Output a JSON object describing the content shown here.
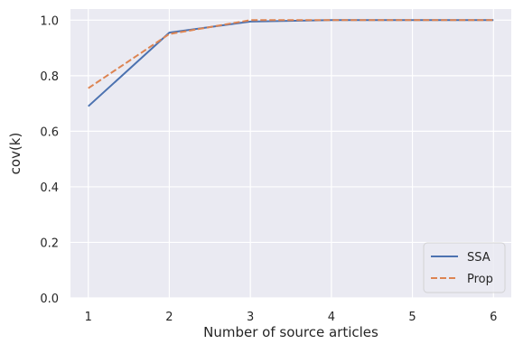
{
  "chart_data": {
    "type": "line",
    "x": [
      1,
      2,
      3,
      4,
      5,
      6
    ],
    "series": [
      {
        "name": "SSA",
        "values": [
          0.69,
          0.955,
          0.995,
          1.0,
          1.0,
          1.0
        ],
        "color": "#4c72b0",
        "style": "solid"
      },
      {
        "name": "Prop",
        "values": [
          0.755,
          0.95,
          1.0,
          1.0,
          1.0,
          1.0
        ],
        "color": "#dd8452",
        "style": "dashed"
      }
    ],
    "xlabel": "Number of source articles",
    "ylabel": "cov(k)",
    "xlim": [
      0.78,
      6.22
    ],
    "ylim": [
      0.0,
      1.04
    ],
    "xticks": [
      1,
      2,
      3,
      4,
      5,
      6
    ],
    "xtick_labels": [
      "1",
      "2",
      "3",
      "4",
      "5",
      "6"
    ],
    "yticks": [
      0.0,
      0.2,
      0.4,
      0.6,
      0.8,
      1.0
    ],
    "ytick_labels": [
      "0.0",
      "0.2",
      "0.4",
      "0.6",
      "0.8",
      "1.0"
    ],
    "grid": true,
    "legend_position": "lower-right",
    "background_color": "#eaeaf2",
    "grid_color": "#ffffff"
  }
}
